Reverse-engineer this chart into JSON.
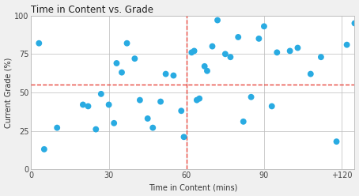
{
  "title": "Time in Content vs. Grade",
  "xlabel": "Time in Content (mins)",
  "ylabel": "Current Grade (%)",
  "xlim": [
    0,
    125
  ],
  "ylim": [
    0,
    100
  ],
  "yticks": [
    0,
    25,
    50,
    75,
    100
  ],
  "vline_x": 60,
  "hline_y": 55,
  "dot_color": "#29ABE2",
  "line_color": "#E8453C",
  "bg_color": "#FFFFFF",
  "fig_bg": "#F0F0F0",
  "scatter_x": [
    3,
    5,
    10,
    20,
    22,
    25,
    27,
    30,
    32,
    33,
    35,
    37,
    40,
    42,
    45,
    47,
    50,
    52,
    55,
    58,
    59,
    62,
    63,
    64,
    65,
    67,
    68,
    70,
    72,
    75,
    77,
    80,
    82,
    85,
    88,
    90,
    93,
    95,
    100,
    103,
    108,
    112,
    118,
    122,
    125
  ],
  "scatter_y": [
    82,
    13,
    27,
    42,
    41,
    26,
    49,
    42,
    30,
    69,
    63,
    82,
    72,
    45,
    33,
    27,
    44,
    62,
    61,
    38,
    21,
    76,
    77,
    45,
    46,
    67,
    64,
    80,
    97,
    75,
    73,
    86,
    31,
    47,
    85,
    93,
    41,
    76,
    77,
    79,
    62,
    73,
    18,
    81,
    95
  ],
  "title_fontsize": 8.5,
  "label_fontsize": 7,
  "tick_fontsize": 7
}
